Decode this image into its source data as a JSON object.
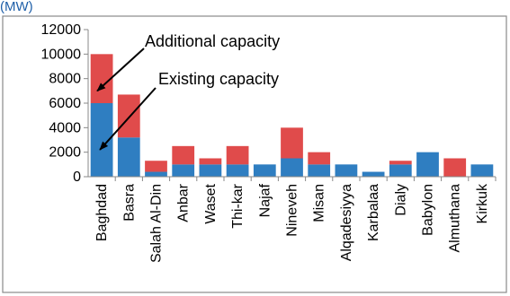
{
  "chart_data": {
    "type": "bar",
    "stacked": true,
    "cropped_title_fragment": "(MW)",
    "categories": [
      "Baghdad",
      "Basra",
      "Salah Al-Din",
      "Anbar",
      "Waset",
      "Thi-kar",
      "Najaf",
      "Nineveh",
      "Misan",
      "Alqadesiyya",
      "Karbalaa",
      "Dialy",
      "Babylon",
      "Almuthana",
      "Kirkuk"
    ],
    "series": [
      {
        "name": "Existing capacity",
        "color": "#2f7ec1",
        "values": [
          6000,
          3200,
          400,
          1000,
          1000,
          1000,
          1000,
          1500,
          1000,
          1000,
          400,
          1000,
          2000,
          0,
          1000
        ]
      },
      {
        "name": "Additional capacity",
        "color": "#e04b4b",
        "values": [
          4000,
          3500,
          900,
          1500,
          500,
          1500,
          0,
          2500,
          1000,
          0,
          0,
          300,
          0,
          1500,
          0
        ]
      }
    ],
    "y_ticks": [
      "0",
      "2000",
      "4000",
      "6000",
      "8000",
      "10000",
      "12000"
    ],
    "ylim": [
      0,
      12000
    ],
    "grid": false,
    "annotations": [
      {
        "text": "Additional capacity",
        "points_to": "Baghdad",
        "arrow_target_value": 7000
      },
      {
        "text": "Existing capacity",
        "points_to": "Baghdad",
        "arrow_target_value": 2200
      }
    ]
  }
}
